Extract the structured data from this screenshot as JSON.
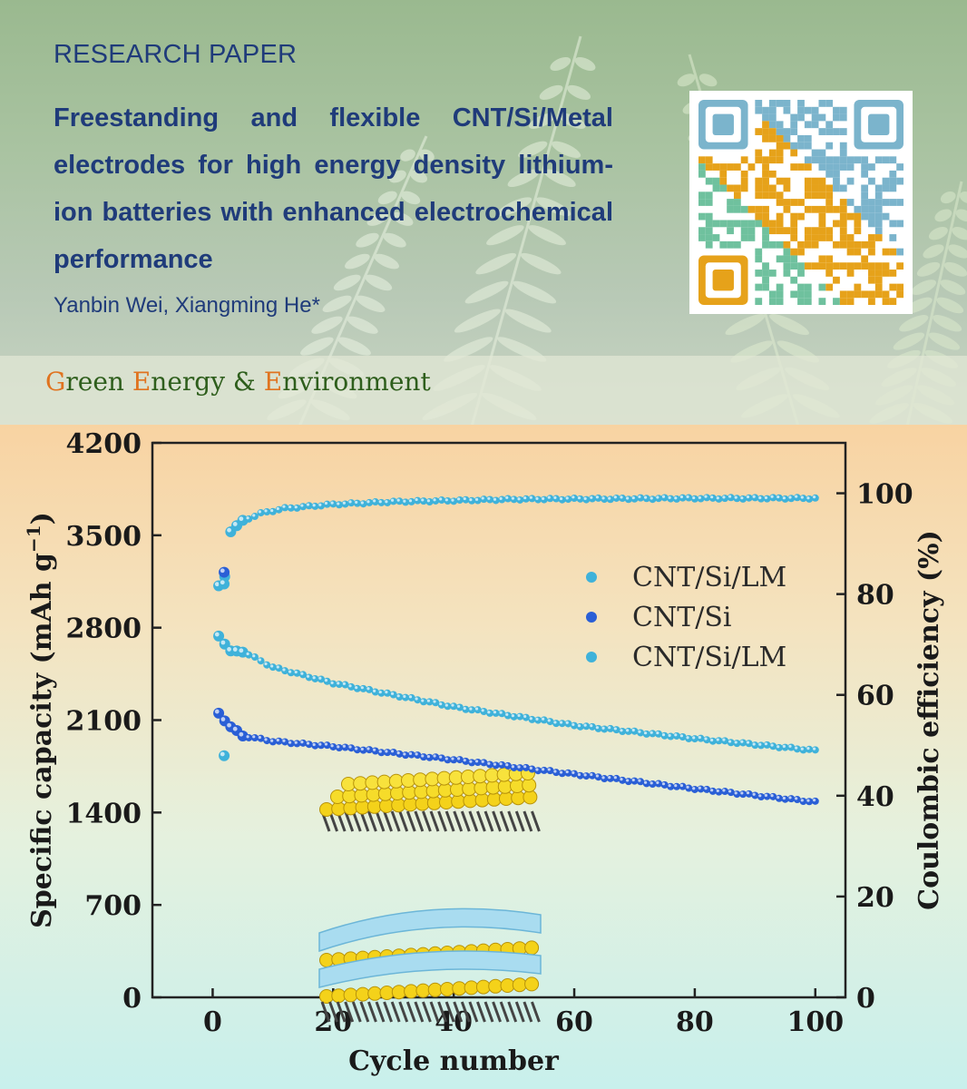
{
  "header": {
    "label": "RESEARCH PAPER",
    "title": "Freestanding and flexible CNT/Si/Metal electrodes for high energy density lithium-ion batteries with enhanced electrochemical performance",
    "authors": "Yanbin Wei, Xiangming He*",
    "journal": {
      "initial1": "G",
      "part1": "reen ",
      "initial2": "E",
      "part2": "nergy & ",
      "initial3": "E",
      "part3": "nvironment"
    },
    "qr_icon": "qr-code-icon",
    "background_image": "fern-leaves"
  },
  "colors": {
    "title_text": "#1f3b7a",
    "journal_initial": "#e0731f",
    "journal_text": "#2e5e1c",
    "series_lm": "#3fb2da",
    "series_si": "#2a5fd6"
  },
  "chart_data": {
    "type": "scatter",
    "xlabel": "Cycle number",
    "ylabel": "Specific capacity (mAh g⁻¹)",
    "y2label": "Coulombic efficiency (%)",
    "xlim": [
      -10,
      105
    ],
    "ylim": [
      0,
      4200
    ],
    "y2lim": [
      0,
      110
    ],
    "xticks": [
      0,
      20,
      40,
      60,
      80,
      100
    ],
    "yticks": [
      0,
      700,
      1400,
      2100,
      2800,
      3500,
      4200
    ],
    "y2ticks": [
      0,
      20,
      40,
      60,
      80,
      100
    ],
    "grid": false,
    "legend_position": "right-center",
    "legend": [
      "CNT/Si/LM",
      "CNT/Si",
      "CNT/Si/LM"
    ],
    "series": [
      {
        "name": "CNT/Si/LM",
        "axis": "right",
        "color": "#3fb2da",
        "anchors": [
          [
            1,
            81.5
          ],
          [
            2,
            83.5
          ],
          [
            3,
            92.5
          ],
          [
            5,
            94.5
          ],
          [
            8,
            96.0
          ],
          [
            12,
            97.0
          ],
          [
            20,
            97.8
          ],
          [
            30,
            98.3
          ],
          [
            50,
            98.8
          ],
          [
            80,
            99.0
          ],
          [
            100,
            99.0
          ]
        ]
      },
      {
        "name": "CNT/Si",
        "axis": "left",
        "color": "#2a5fd6",
        "anchors": [
          [
            1,
            2150
          ],
          [
            3,
            2050
          ],
          [
            5,
            1980
          ],
          [
            10,
            1940
          ],
          [
            20,
            1900
          ],
          [
            40,
            1800
          ],
          [
            60,
            1690
          ],
          [
            80,
            1580
          ],
          [
            100,
            1480
          ]
        ]
      },
      {
        "name": "CNT/Si/LM",
        "axis": "left",
        "color": "#3fb2da",
        "anchors": [
          [
            1,
            2740
          ],
          [
            3,
            2620
          ],
          [
            5,
            2620
          ],
          [
            10,
            2500
          ],
          [
            20,
            2380
          ],
          [
            40,
            2200
          ],
          [
            60,
            2060
          ],
          [
            80,
            1960
          ],
          [
            100,
            1870
          ]
        ]
      }
    ],
    "first_cycle_points": [
      {
        "series": "CNT/Si/LM efficiency",
        "x": 1,
        "y": 82,
        "axis": "right"
      },
      {
        "series": "CNT/Si capacity",
        "x": 1,
        "y": 3220,
        "axis": "left"
      },
      {
        "series": "CNT/Si/LM capacity",
        "x": 1,
        "y": 1830,
        "axis": "left"
      }
    ],
    "insets": [
      "electrode-structure-top",
      "electrode-structure-bottom"
    ]
  }
}
